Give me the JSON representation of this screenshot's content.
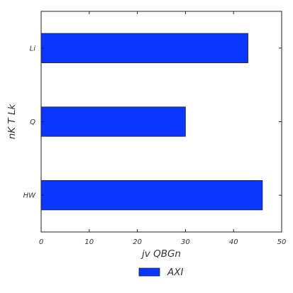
{
  "chart_data": {
    "type": "bar",
    "orientation": "horizontal",
    "categories": [
      "HW",
      "Q",
      "Li"
    ],
    "series": [
      {
        "name": "AXI",
        "values": [
          46,
          30,
          43
        ],
        "color": "#0a36ff"
      }
    ],
    "xlabel": "jv QBGn",
    "ylabel": "nK  T Lk",
    "xlim": [
      0,
      50
    ],
    "xticks": [
      "0",
      "10",
      "20",
      "30",
      "40",
      "50"
    ],
    "grid": false,
    "legend_position": "bottom-center"
  }
}
